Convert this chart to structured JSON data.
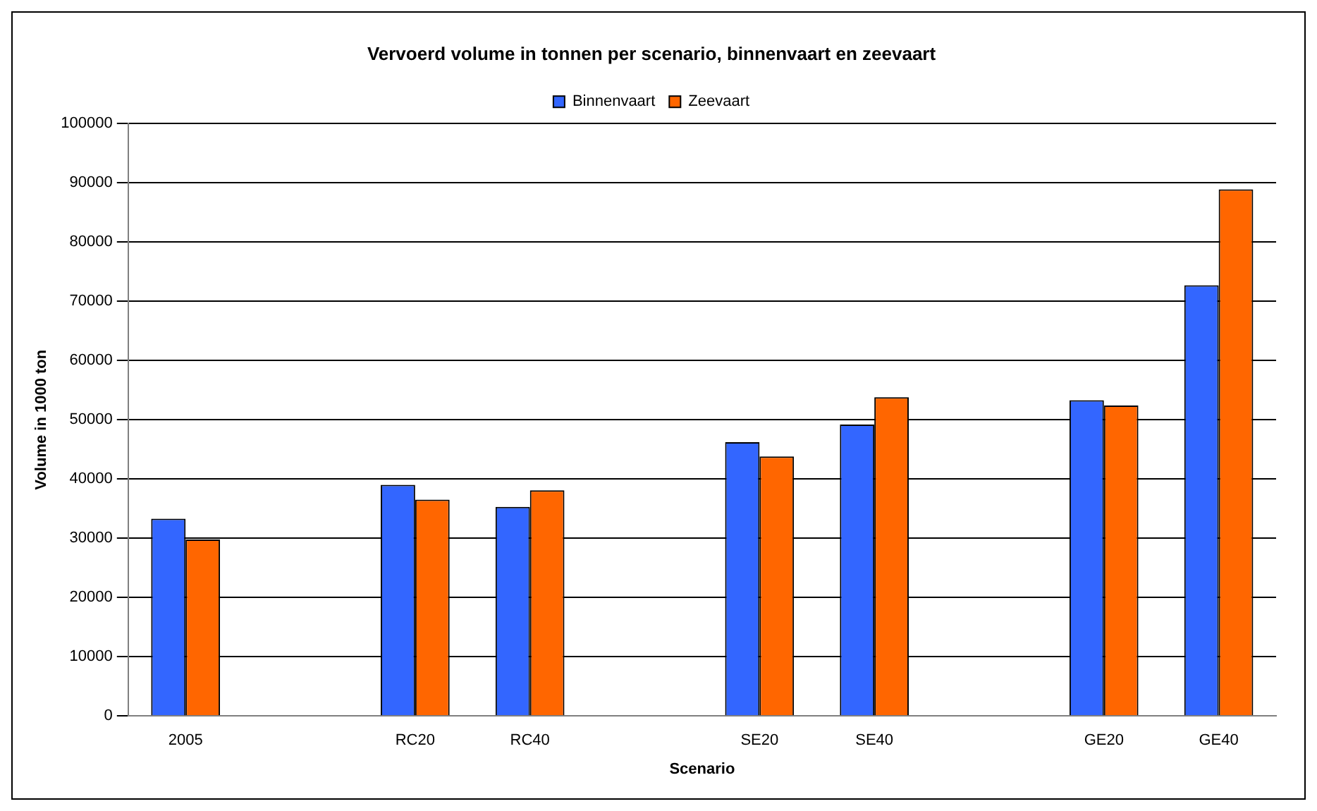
{
  "chart_data": {
    "type": "bar",
    "title": "Vervoerd volume in tonnen per scenario, binnenvaart en zeevaart",
    "xlabel": "Scenario",
    "ylabel": "Volume in 1000 ton",
    "categories": [
      "2005",
      null,
      "RC20",
      "RC40",
      null,
      "SE20",
      "SE40",
      null,
      "GE20",
      "GE40"
    ],
    "series": [
      {
        "name": "Binnenvaart",
        "color": "#3366ff",
        "values": [
          33300,
          null,
          39000,
          35300,
          null,
          46200,
          49200,
          null,
          53300,
          72700
        ]
      },
      {
        "name": "Zeevaart",
        "color": "#ff6600",
        "values": [
          29800,
          null,
          36500,
          38100,
          null,
          43800,
          53800,
          null,
          52400,
          88900
        ]
      }
    ],
    "ylim": [
      0,
      100000
    ],
    "yticks": [
      0,
      10000,
      20000,
      30000,
      40000,
      50000,
      60000,
      70000,
      80000,
      90000,
      100000
    ],
    "grid": "y",
    "legend": "top"
  }
}
